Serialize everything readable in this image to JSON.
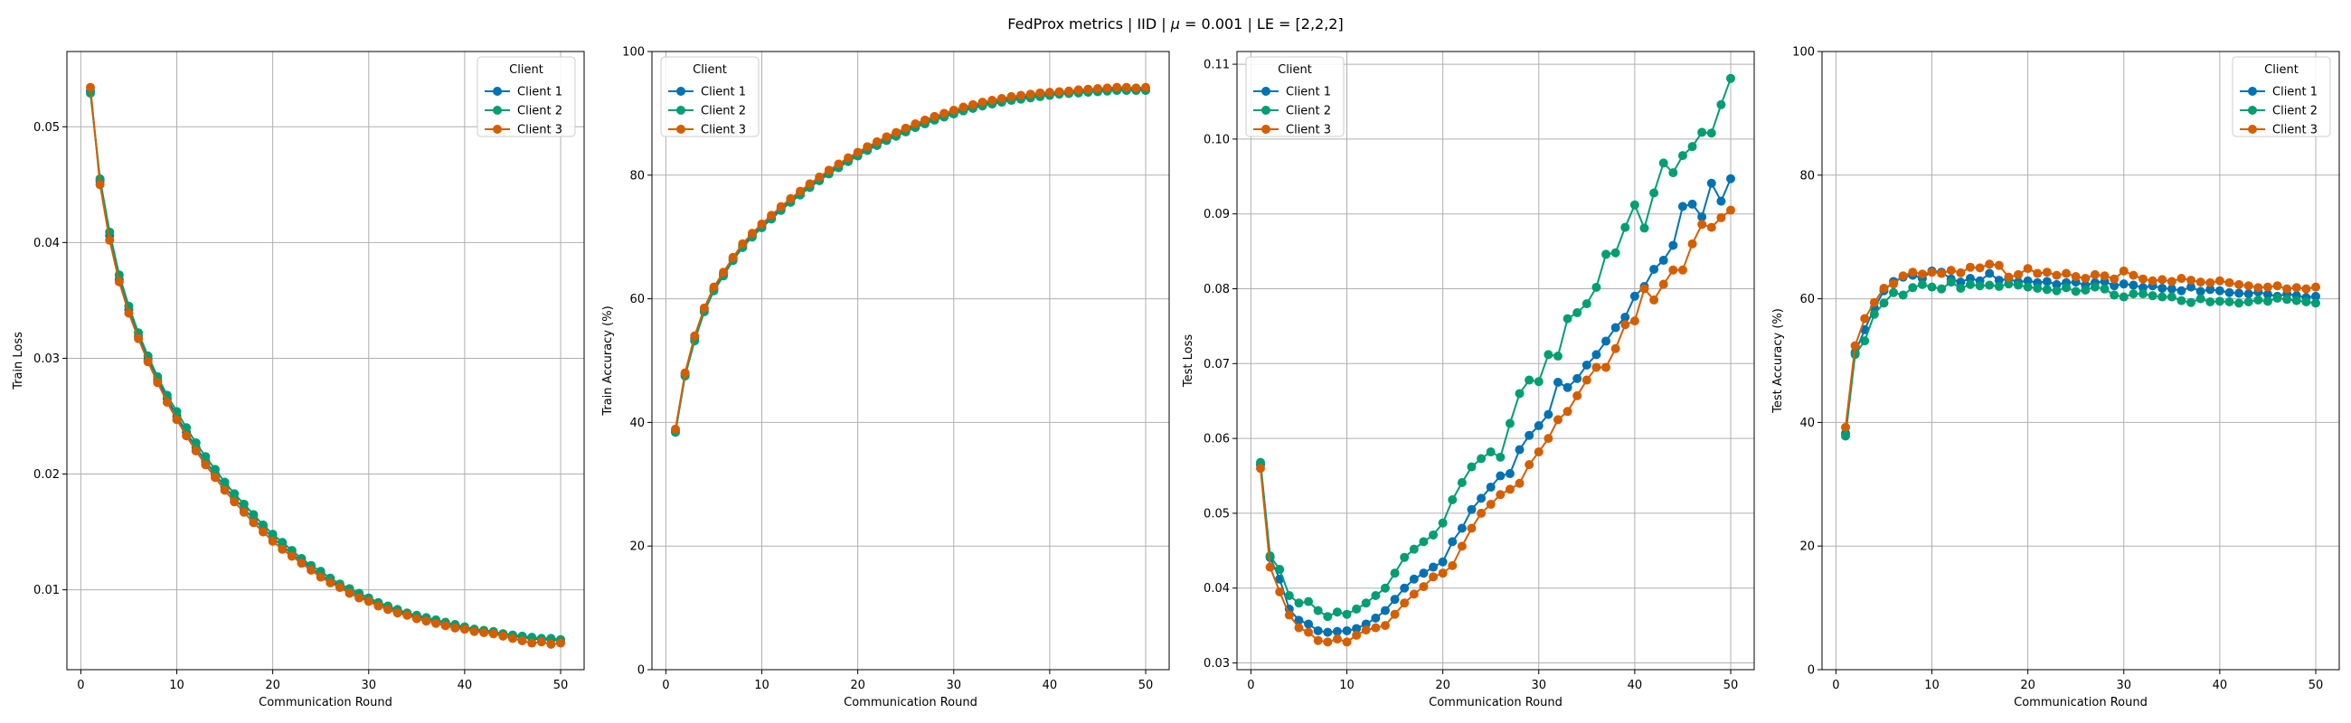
{
  "figure": {
    "title_prefix": "FedProx metrics | IID | ",
    "title_mu_symbol": "μ",
    "title_suffix": " = 0.001 | LE = [2,2,2]"
  },
  "legend_title": "Client",
  "colors": {
    "Client 1": "#0072b2",
    "Client 2": "#009e73",
    "Client 3": "#d55e00"
  },
  "chart_data": [
    {
      "type": "line",
      "xlabel": "Communication Round",
      "ylabel": "Train Loss",
      "xlim": [
        -1.45,
        52.45
      ],
      "ylim": [
        0.0031,
        0.0565
      ],
      "xticks": [
        0,
        10,
        20,
        30,
        40,
        50
      ],
      "yticks": [
        0.01,
        0.02,
        0.03,
        0.04,
        0.05
      ],
      "ytick_labels": [
        "0.01",
        "0.02",
        "0.03",
        "0.04",
        "0.05"
      ],
      "grid": true,
      "legend": "top-right",
      "x": [
        1,
        2,
        3,
        4,
        5,
        6,
        7,
        8,
        9,
        10,
        11,
        12,
        13,
        14,
        15,
        16,
        17,
        18,
        19,
        20,
        21,
        22,
        23,
        24,
        25,
        26,
        27,
        28,
        29,
        30,
        31,
        32,
        33,
        34,
        35,
        36,
        37,
        38,
        39,
        40,
        41,
        42,
        43,
        44,
        45,
        46,
        47,
        48,
        49,
        50
      ],
      "series": [
        {
          "name": "Client 1",
          "values": [
            0.0531,
            0.0453,
            0.0406,
            0.0368,
            0.0342,
            0.0319,
            0.0299,
            0.0281,
            0.0265,
            0.025,
            0.0236,
            0.0223,
            0.0211,
            0.02,
            0.0189,
            0.0179,
            0.017,
            0.0161,
            0.0153,
            0.0145,
            0.0138,
            0.0131,
            0.0125,
            0.0119,
            0.0113,
            0.0108,
            0.0103,
            0.0099,
            0.0095,
            0.0091,
            0.0088,
            0.0085,
            0.0082,
            0.0079,
            0.0077,
            0.0075,
            0.0073,
            0.0071,
            0.0069,
            0.0067,
            0.0065,
            0.0064,
            0.0063,
            0.0062,
            0.006,
            0.0059,
            0.0058,
            0.0057,
            0.0057,
            0.0056
          ]
        },
        {
          "name": "Client 2",
          "values": [
            0.0529,
            0.0455,
            0.0409,
            0.0372,
            0.0345,
            0.0322,
            0.0302,
            0.0284,
            0.0268,
            0.0254,
            0.024,
            0.0227,
            0.0215,
            0.0204,
            0.0193,
            0.0183,
            0.0174,
            0.0165,
            0.0156,
            0.0148,
            0.0141,
            0.0134,
            0.0127,
            0.0121,
            0.0116,
            0.011,
            0.0105,
            0.0101,
            0.0097,
            0.0093,
            0.0089,
            0.0086,
            0.0083,
            0.008,
            0.0078,
            0.0076,
            0.0074,
            0.0072,
            0.007,
            0.0068,
            0.0066,
            0.0065,
            0.0064,
            0.0062,
            0.0061,
            0.006,
            0.0059,
            0.0058,
            0.0058,
            0.0057
          ]
        },
        {
          "name": "Client 3",
          "values": [
            0.0534,
            0.045,
            0.0402,
            0.0366,
            0.0339,
            0.0317,
            0.0297,
            0.0279,
            0.0262,
            0.0247,
            0.0233,
            0.022,
            0.0208,
            0.0197,
            0.0186,
            0.0176,
            0.0167,
            0.0158,
            0.015,
            0.0142,
            0.0135,
            0.0129,
            0.0123,
            0.0117,
            0.0111,
            0.0106,
            0.0102,
            0.0097,
            0.0093,
            0.009,
            0.0086,
            0.0083,
            0.008,
            0.0078,
            0.0075,
            0.0073,
            0.0071,
            0.0069,
            0.0067,
            0.0066,
            0.0064,
            0.0063,
            0.0062,
            0.006,
            0.0058,
            0.0056,
            0.0054,
            0.0055,
            0.0053,
            0.0054
          ]
        }
      ]
    },
    {
      "type": "line",
      "xlabel": "Communication Round",
      "ylabel": "Train Accuracy (%)",
      "xlim": [
        -1.45,
        52.45
      ],
      "ylim": [
        0,
        100
      ],
      "xticks": [
        0,
        10,
        20,
        30,
        40,
        50
      ],
      "yticks": [
        0,
        20,
        40,
        60,
        80,
        100
      ],
      "ytick_labels": [
        "0",
        "20",
        "40",
        "60",
        "80",
        "100"
      ],
      "grid": true,
      "legend": "top-left",
      "x": [
        1,
        2,
        3,
        4,
        5,
        6,
        7,
        8,
        9,
        10,
        11,
        12,
        13,
        14,
        15,
        16,
        17,
        18,
        19,
        20,
        21,
        22,
        23,
        24,
        25,
        26,
        27,
        28,
        29,
        30,
        31,
        32,
        33,
        34,
        35,
        36,
        37,
        38,
        39,
        40,
        41,
        42,
        43,
        44,
        45,
        46,
        47,
        48,
        49,
        50
      ],
      "series": [
        {
          "name": "Client 1",
          "values": [
            38.6,
            47.7,
            53.6,
            58.2,
            61.6,
            64.0,
            66.4,
            68.6,
            70.3,
            71.8,
            73.2,
            74.6,
            75.9,
            77.1,
            78.3,
            79.4,
            80.5,
            81.5,
            82.5,
            83.4,
            84.3,
            85.1,
            85.9,
            86.6,
            87.3,
            88.0,
            88.6,
            89.2,
            89.7,
            90.2,
            90.7,
            91.1,
            91.5,
            91.8,
            92.1,
            92.4,
            92.6,
            92.8,
            93.0,
            93.2,
            93.3,
            93.5,
            93.6,
            93.7,
            93.8,
            93.9,
            94.0,
            94.0,
            94.0,
            94.0
          ]
        },
        {
          "name": "Client 2",
          "values": [
            38.4,
            47.5,
            53.2,
            57.9,
            61.3,
            63.7,
            66.2,
            68.3,
            70.0,
            71.5,
            72.9,
            74.3,
            75.6,
            76.8,
            78.0,
            79.1,
            80.2,
            81.2,
            82.2,
            83.1,
            84.0,
            84.8,
            85.6,
            86.3,
            87.0,
            87.7,
            88.3,
            88.9,
            89.4,
            89.9,
            90.4,
            90.8,
            91.2,
            91.5,
            91.8,
            92.1,
            92.3,
            92.5,
            92.7,
            92.9,
            93.1,
            93.2,
            93.3,
            93.4,
            93.5,
            93.6,
            93.7,
            93.7,
            93.7,
            93.7
          ]
        },
        {
          "name": "Client 3",
          "values": [
            38.9,
            48.0,
            54.0,
            58.5,
            61.9,
            64.3,
            66.7,
            68.9,
            70.6,
            72.1,
            73.5,
            74.9,
            76.2,
            77.4,
            78.6,
            79.7,
            80.8,
            81.8,
            82.8,
            83.7,
            84.6,
            85.4,
            86.2,
            86.9,
            87.6,
            88.3,
            88.9,
            89.5,
            90.0,
            90.5,
            91.0,
            91.4,
            91.8,
            92.1,
            92.4,
            92.7,
            92.9,
            93.1,
            93.3,
            93.4,
            93.5,
            93.6,
            93.8,
            93.9,
            94.0,
            94.1,
            94.2,
            94.2,
            94.1,
            94.2
          ]
        }
      ]
    },
    {
      "type": "line",
      "xlabel": "Communication Round",
      "ylabel": "Test Loss",
      "xlim": [
        -1.45,
        52.45
      ],
      "ylim": [
        0.0291,
        0.1117
      ],
      "xticks": [
        0,
        10,
        20,
        30,
        40,
        50
      ],
      "yticks": [
        0.03,
        0.04,
        0.05,
        0.06,
        0.07,
        0.08,
        0.09,
        0.1,
        0.11
      ],
      "ytick_labels": [
        "0.03",
        "0.04",
        "0.05",
        "0.06",
        "0.07",
        "0.08",
        "0.09",
        "0.10",
        "0.11"
      ],
      "grid": true,
      "legend": "top-left",
      "x": [
        1,
        2,
        3,
        4,
        5,
        6,
        7,
        8,
        9,
        10,
        11,
        12,
        13,
        14,
        15,
        16,
        17,
        18,
        19,
        20,
        21,
        22,
        23,
        24,
        25,
        26,
        27,
        28,
        29,
        30,
        31,
        32,
        33,
        34,
        35,
        36,
        37,
        38,
        39,
        40,
        41,
        42,
        43,
        44,
        45,
        46,
        47,
        48,
        49,
        50
      ],
      "series": [
        {
          "name": "Client 1",
          "values": [
            0.0565,
            0.0441,
            0.0412,
            0.0372,
            0.0357,
            0.0352,
            0.0343,
            0.0341,
            0.0342,
            0.0343,
            0.0346,
            0.0352,
            0.036,
            0.037,
            0.0385,
            0.04,
            0.0412,
            0.042,
            0.0428,
            0.0435,
            0.0462,
            0.048,
            0.0505,
            0.052,
            0.0535,
            0.055,
            0.0553,
            0.0585,
            0.0604,
            0.0617,
            0.0632,
            0.0675,
            0.0668,
            0.068,
            0.0698,
            0.0712,
            0.073,
            0.0748,
            0.0762,
            0.079,
            0.0803,
            0.0826,
            0.0838,
            0.0858,
            0.091,
            0.0913,
            0.0896,
            0.0941,
            0.0917,
            0.0947
          ]
        },
        {
          "name": "Client 2",
          "values": [
            0.0568,
            0.0443,
            0.0425,
            0.039,
            0.038,
            0.0382,
            0.037,
            0.0362,
            0.0368,
            0.0365,
            0.0372,
            0.038,
            0.039,
            0.04,
            0.042,
            0.0441,
            0.0452,
            0.0462,
            0.0471,
            0.0487,
            0.0518,
            0.0541,
            0.0562,
            0.0573,
            0.0582,
            0.0575,
            0.062,
            0.066,
            0.0678,
            0.0676,
            0.0712,
            0.071,
            0.076,
            0.0768,
            0.078,
            0.0802,
            0.0846,
            0.0848,
            0.0882,
            0.0912,
            0.0881,
            0.0928,
            0.0968,
            0.0955,
            0.0978,
            0.099,
            0.1009,
            0.1008,
            0.1046,
            0.1081
          ]
        },
        {
          "name": "Client 3",
          "values": [
            0.056,
            0.0428,
            0.0395,
            0.0364,
            0.0347,
            0.0341,
            0.033,
            0.0328,
            0.0332,
            0.0328,
            0.0337,
            0.0344,
            0.0347,
            0.035,
            0.0365,
            0.038,
            0.0392,
            0.0402,
            0.0415,
            0.042,
            0.043,
            0.0456,
            0.048,
            0.05,
            0.0512,
            0.0525,
            0.0532,
            0.054,
            0.0565,
            0.0582,
            0.06,
            0.0625,
            0.0636,
            0.0657,
            0.0678,
            0.0695,
            0.0695,
            0.072,
            0.0752,
            0.0757,
            0.08,
            0.0785,
            0.0806,
            0.0825,
            0.0825,
            0.086,
            0.0886,
            0.0882,
            0.0895,
            0.0905
          ]
        }
      ]
    },
    {
      "type": "line",
      "xlabel": "Communication Round",
      "ylabel": "Test Accuracy (%)",
      "xlim": [
        -1.45,
        52.45
      ],
      "ylim": [
        0,
        100
      ],
      "xticks": [
        0,
        10,
        20,
        30,
        40,
        50
      ],
      "yticks": [
        0,
        20,
        40,
        60,
        80,
        100
      ],
      "ytick_labels": [
        "0",
        "20",
        "40",
        "60",
        "80",
        "100"
      ],
      "grid": true,
      "legend": "top-right",
      "x": [
        1,
        2,
        3,
        4,
        5,
        6,
        7,
        8,
        9,
        10,
        11,
        12,
        13,
        14,
        15,
        16,
        17,
        18,
        19,
        20,
        21,
        22,
        23,
        24,
        25,
        26,
        27,
        28,
        29,
        30,
        31,
        32,
        33,
        34,
        35,
        36,
        37,
        38,
        39,
        40,
        41,
        42,
        43,
        44,
        45,
        46,
        47,
        48,
        49,
        50
      ],
      "series": [
        {
          "name": "Client 1",
          "values": [
            38.2,
            51.3,
            55.0,
            58.5,
            61.3,
            62.8,
            63.5,
            63.8,
            63.3,
            64.5,
            64.3,
            63.2,
            62.7,
            63.3,
            62.9,
            64.1,
            63.0,
            63.2,
            62.7,
            62.9,
            62.6,
            62.8,
            62.3,
            62.6,
            62.7,
            62.2,
            62.6,
            62.8,
            62.1,
            62.4,
            62.2,
            61.8,
            62.1,
            61.7,
            61.6,
            61.3,
            61.9,
            61.2,
            61.5,
            61.3,
            61.0,
            60.9,
            60.8,
            61.1,
            60.7,
            60.4,
            60.8,
            60.5,
            60.2,
            60.4
          ]
        },
        {
          "name": "Client 2",
          "values": [
            37.8,
            51.0,
            53.2,
            57.5,
            59.3,
            61.0,
            60.6,
            61.8,
            62.3,
            61.9,
            61.6,
            62.7,
            61.7,
            62.3,
            62.1,
            62.2,
            62.0,
            62.4,
            62.2,
            61.9,
            61.7,
            61.5,
            61.3,
            61.8,
            61.2,
            61.4,
            61.9,
            61.6,
            60.6,
            60.3,
            60.8,
            60.8,
            60.5,
            60.3,
            60.3,
            59.7,
            59.4,
            60.0,
            59.5,
            59.6,
            59.5,
            59.3,
            59.5,
            59.8,
            59.6,
            60.1,
            59.9,
            59.7,
            59.5,
            59.3
          ]
        },
        {
          "name": "Client 3",
          "values": [
            39.2,
            52.4,
            56.8,
            59.4,
            61.7,
            62.4,
            63.7,
            64.3,
            64.0,
            64.3,
            64.1,
            64.6,
            64.2,
            65.1,
            65.0,
            65.6,
            65.4,
            63.5,
            63.9,
            64.9,
            64.1,
            64.3,
            63.8,
            64.1,
            63.6,
            63.3,
            63.9,
            63.7,
            63.2,
            64.5,
            63.8,
            63.2,
            62.9,
            63.1,
            62.8,
            63.3,
            63.0,
            62.7,
            62.6,
            62.9,
            62.6,
            62.3,
            62.1,
            61.8,
            61.9,
            62.1,
            61.6,
            61.8,
            61.6,
            61.9
          ]
        }
      ]
    }
  ]
}
